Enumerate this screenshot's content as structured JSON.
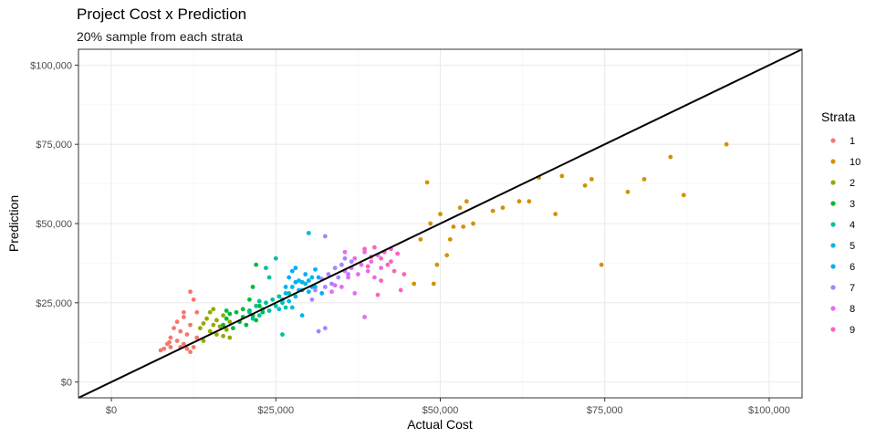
{
  "chart_data": {
    "type": "scatter",
    "title": "Project Cost x Prediction",
    "subtitle": "20% sample from each strata",
    "xlabel": "Actual Cost",
    "ylabel": "Prediction",
    "xlim": [
      -5000,
      105000
    ],
    "ylim": [
      -5000,
      105000
    ],
    "x_ticks": [
      0,
      25000,
      50000,
      75000,
      100000
    ],
    "x_tick_labels": [
      "$0",
      "$25,000",
      "$50,000",
      "$75,000",
      "$100,000"
    ],
    "y_ticks": [
      0,
      25000,
      50000,
      75000,
      100000
    ],
    "y_tick_labels": [
      "$0",
      "$25,000",
      "$50,000",
      "$75,000",
      "$100,000"
    ],
    "grid": true,
    "reference_line": {
      "slope": 1,
      "intercept": 0,
      "color": "#000000"
    },
    "legend": {
      "title": "Strata",
      "position": "right"
    },
    "series": [
      {
        "name": "1",
        "color": "#F8766D",
        "points": [
          [
            7500,
            10000
          ],
          [
            8000,
            10500
          ],
          [
            8500,
            12000
          ],
          [
            9000,
            14000
          ],
          [
            9000,
            11000
          ],
          [
            9500,
            17000
          ],
          [
            10000,
            13000
          ],
          [
            10000,
            19000
          ],
          [
            10500,
            16000
          ],
          [
            11000,
            12000
          ],
          [
            11000,
            20500
          ],
          [
            11500,
            10500
          ],
          [
            11500,
            15000
          ],
          [
            12000,
            9500
          ],
          [
            12000,
            18000
          ],
          [
            12000,
            28500
          ],
          [
            12500,
            26000
          ],
          [
            12500,
            11000
          ],
          [
            13000,
            22000
          ],
          [
            13000,
            14000
          ],
          [
            11000,
            22000
          ],
          [
            10500,
            11000
          ],
          [
            8800,
            12500
          ]
        ]
      },
      {
        "name": "10",
        "color": "#D39200",
        "points": [
          [
            46000,
            31000
          ],
          [
            47000,
            45000
          ],
          [
            48000,
            63000
          ],
          [
            49000,
            31000
          ],
          [
            49500,
            37000
          ],
          [
            50000,
            53000
          ],
          [
            51000,
            40000
          ],
          [
            51500,
            45000
          ],
          [
            52000,
            49000
          ],
          [
            53000,
            55000
          ],
          [
            54000,
            57000
          ],
          [
            55000,
            50000
          ],
          [
            58000,
            54000
          ],
          [
            59500,
            55000
          ],
          [
            62000,
            57000
          ],
          [
            63500,
            57000
          ],
          [
            65000,
            64500
          ],
          [
            67500,
            53000
          ],
          [
            68500,
            65000
          ],
          [
            72000,
            62000
          ],
          [
            73000,
            64000
          ],
          [
            74500,
            37000
          ],
          [
            78500,
            60000
          ],
          [
            81000,
            64000
          ],
          [
            85000,
            71000
          ],
          [
            87000,
            59000
          ],
          [
            93500,
            75000
          ],
          [
            48500,
            50000
          ],
          [
            53500,
            49000
          ]
        ]
      },
      {
        "name": "2",
        "color": "#93AA00",
        "points": [
          [
            13500,
            17000
          ],
          [
            14000,
            18500
          ],
          [
            14000,
            13000
          ],
          [
            14500,
            20000
          ],
          [
            15000,
            16000
          ],
          [
            15000,
            22000
          ],
          [
            15500,
            18000
          ],
          [
            16000,
            15000
          ],
          [
            16000,
            19500
          ],
          [
            16500,
            17500
          ],
          [
            17000,
            14500
          ],
          [
            17000,
            21000
          ],
          [
            17500,
            16500
          ],
          [
            18000,
            19000
          ],
          [
            18000,
            14000
          ],
          [
            15500,
            23000
          ]
        ]
      },
      {
        "name": "3",
        "color": "#00BA38",
        "points": [
          [
            17000,
            18000
          ],
          [
            17500,
            20000
          ],
          [
            18000,
            21500
          ],
          [
            18500,
            17000
          ],
          [
            19000,
            22000
          ],
          [
            19500,
            19000
          ],
          [
            20000,
            20500
          ],
          [
            20000,
            23000
          ],
          [
            20500,
            18000
          ],
          [
            21000,
            22500
          ],
          [
            21000,
            26000
          ],
          [
            21500,
            21000
          ],
          [
            21500,
            30000
          ],
          [
            22000,
            19500
          ],
          [
            22000,
            37000
          ],
          [
            22500,
            24000
          ],
          [
            23000,
            22000
          ],
          [
            17500,
            22500
          ]
        ]
      },
      {
        "name": "4",
        "color": "#00C19F",
        "points": [
          [
            21000,
            22000
          ],
          [
            21500,
            20000
          ],
          [
            22000,
            24000
          ],
          [
            22500,
            21000
          ],
          [
            23000,
            23000
          ],
          [
            23500,
            25000
          ],
          [
            24000,
            22500
          ],
          [
            24500,
            26000
          ],
          [
            25000,
            24000
          ],
          [
            25500,
            27000
          ],
          [
            26000,
            25000
          ],
          [
            26000,
            15000
          ],
          [
            26500,
            23500
          ],
          [
            27000,
            28000
          ],
          [
            24000,
            33000
          ],
          [
            25000,
            39000
          ],
          [
            23500,
            36000
          ],
          [
            22500,
            25500
          ]
        ]
      },
      {
        "name": "5",
        "color": "#00B9E3",
        "points": [
          [
            25500,
            23000
          ],
          [
            26000,
            26000
          ],
          [
            26500,
            28000
          ],
          [
            27000,
            25500
          ],
          [
            27500,
            30000
          ],
          [
            28000,
            27000
          ],
          [
            28500,
            32000
          ],
          [
            29000,
            29000
          ],
          [
            29500,
            31000
          ],
          [
            30000,
            28500
          ],
          [
            30500,
            33000
          ],
          [
            31000,
            30000
          ],
          [
            29000,
            21000
          ],
          [
            30000,
            47000
          ],
          [
            27500,
            23500
          ]
        ]
      },
      {
        "name": "6",
        "color": "#00ADFA",
        "points": [
          [
            26500,
            30000
          ],
          [
            27000,
            33000
          ],
          [
            27500,
            35000
          ],
          [
            28000,
            36000
          ],
          [
            28500,
            29000
          ],
          [
            29000,
            31500
          ],
          [
            29500,
            34000
          ],
          [
            30000,
            32000
          ],
          [
            30500,
            30000
          ],
          [
            31000,
            35500
          ],
          [
            31500,
            33000
          ],
          [
            32000,
            28000
          ],
          [
            28000,
            31500
          ]
        ]
      },
      {
        "name": "7",
        "color": "#AB82FF",
        "points": [
          [
            30500,
            26000
          ],
          [
            31000,
            29000
          ],
          [
            31500,
            16000
          ],
          [
            32000,
            32500
          ],
          [
            32500,
            30000
          ],
          [
            33000,
            34000
          ],
          [
            33500,
            31000
          ],
          [
            34000,
            36000
          ],
          [
            34500,
            33000
          ],
          [
            35000,
            37000
          ],
          [
            35500,
            39000
          ],
          [
            36000,
            34000
          ],
          [
            36500,
            38000
          ],
          [
            32500,
            46000
          ],
          [
            32500,
            17000
          ]
        ]
      },
      {
        "name": "8",
        "color": "#E76BF3",
        "points": [
          [
            33500,
            28500
          ],
          [
            34000,
            30500
          ],
          [
            35000,
            30000
          ],
          [
            35500,
            35000
          ],
          [
            36000,
            33000
          ],
          [
            36500,
            36000
          ],
          [
            37000,
            39000
          ],
          [
            37500,
            34000
          ],
          [
            38000,
            37000
          ],
          [
            38500,
            41000
          ],
          [
            38500,
            20500
          ],
          [
            39000,
            35000
          ],
          [
            39500,
            38000
          ],
          [
            40000,
            33000
          ],
          [
            40500,
            40000
          ],
          [
            41000,
            36000
          ],
          [
            37000,
            28000
          ],
          [
            35500,
            41000
          ]
        ]
      },
      {
        "name": "9",
        "color": "#FF62BC",
        "points": [
          [
            38500,
            42000
          ],
          [
            39000,
            36500
          ],
          [
            39500,
            39500
          ],
          [
            40000,
            42500
          ],
          [
            40500,
            27500
          ],
          [
            41000,
            39000
          ],
          [
            41500,
            41000
          ],
          [
            42000,
            37000
          ],
          [
            42500,
            38000
          ],
          [
            43000,
            35000
          ],
          [
            43500,
            40500
          ],
          [
            44000,
            29000
          ],
          [
            44500,
            34000
          ],
          [
            41000,
            32000
          ],
          [
            42500,
            42000
          ]
        ]
      }
    ]
  }
}
